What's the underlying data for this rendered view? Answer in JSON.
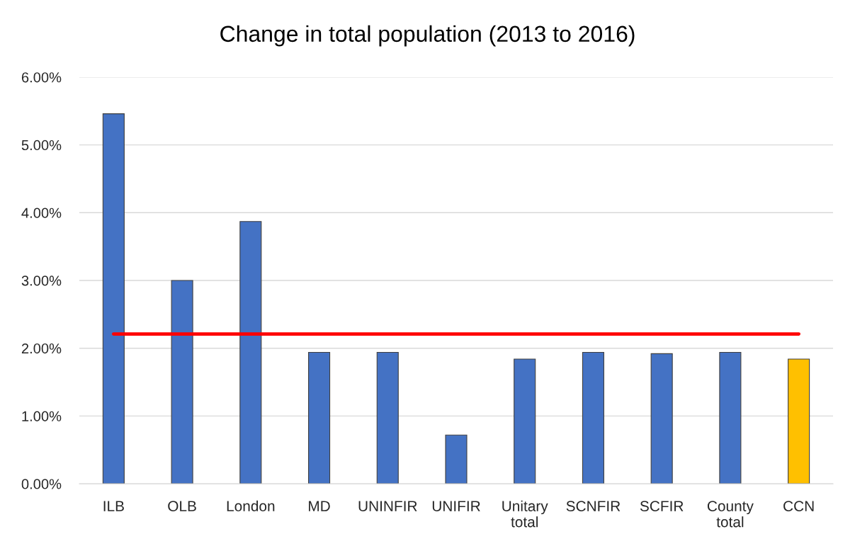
{
  "chart_data": {
    "type": "bar",
    "title": "Change in total population (2013 to 2016)",
    "categories": [
      "ILB",
      "OLB",
      "London",
      "MD",
      "UNINFIR",
      "UNIFIR",
      "Unitary\ntotal",
      "SCNFIR",
      "SCFIR",
      "County\ntotal",
      "CCN"
    ],
    "series": [
      {
        "colors": [
          "#4472c4",
          "#4472c4",
          "#4472c4",
          "#4472c4",
          "#4472c4",
          "#4472c4",
          "#4472c4",
          "#4472c4",
          "#4472c4",
          "#4472c4",
          "#ffc000"
        ],
        "values": [
          5.46,
          3.0,
          3.87,
          1.94,
          1.94,
          0.72,
          1.84,
          1.94,
          1.92,
          1.94,
          1.84
        ]
      },
      {
        "type": "line",
        "color": "#ff0000",
        "line_style": "solid",
        "marker": "none",
        "values": [
          2.21,
          2.21,
          2.21,
          2.21,
          2.21,
          2.21,
          2.21,
          2.21,
          2.21,
          2.21,
          2.21
        ]
      }
    ],
    "ylim": [
      0,
      6
    ],
    "yticks": [
      {
        "value": 0,
        "label": "0.00%"
      },
      {
        "value": 1,
        "label": "1.00%"
      },
      {
        "value": 2,
        "label": "2.00%"
      },
      {
        "value": 3,
        "label": "3.00%"
      },
      {
        "value": 4,
        "label": "4.00%"
      },
      {
        "value": 5,
        "label": "5.00%"
      },
      {
        "value": 6,
        "label": "6.00%"
      }
    ],
    "grid": "y"
  }
}
